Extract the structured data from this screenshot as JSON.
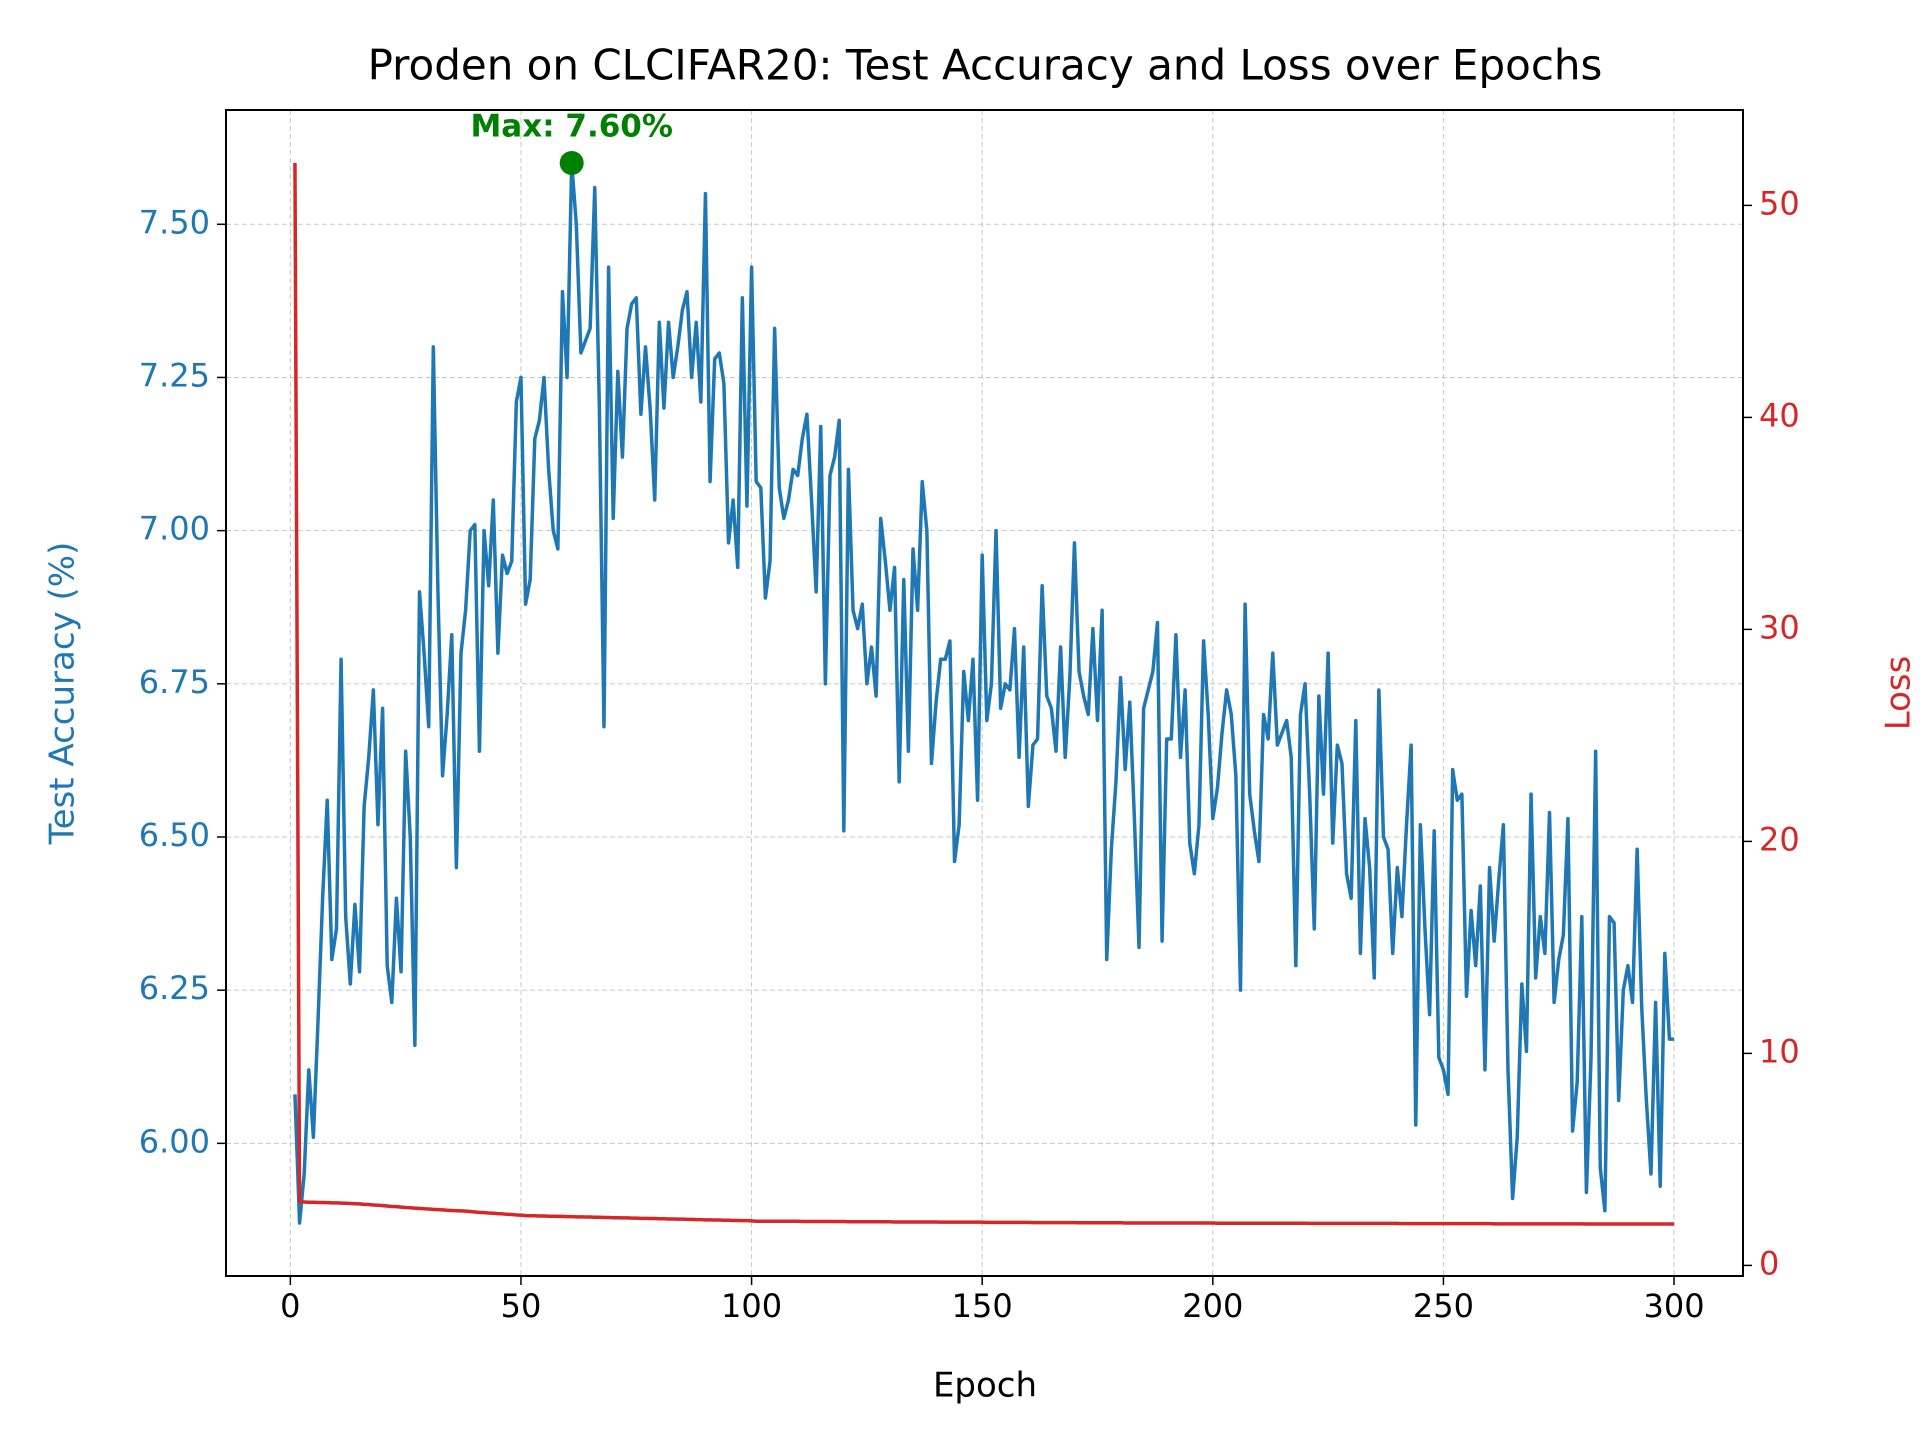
{
  "chart_data": {
    "type": "line",
    "title": "Proden on CLCIFAR20: Test Accuracy and Loss over Epochs",
    "xlabel": "Epoch",
    "ylabel": "Test Accuracy (%)",
    "y2label": "Loss",
    "x": [
      1,
      2,
      3,
      4,
      5,
      6,
      7,
      8,
      9,
      10,
      11,
      12,
      13,
      14,
      15,
      16,
      17,
      18,
      19,
      20,
      21,
      22,
      23,
      24,
      25,
      26,
      27,
      28,
      29,
      30,
      31,
      32,
      33,
      34,
      35,
      36,
      37,
      38,
      39,
      40,
      41,
      42,
      43,
      44,
      45,
      46,
      47,
      48,
      49,
      50,
      51,
      52,
      53,
      54,
      55,
      56,
      57,
      58,
      59,
      60,
      61,
      62,
      63,
      64,
      65,
      66,
      67,
      68,
      69,
      70,
      71,
      72,
      73,
      74,
      75,
      76,
      77,
      78,
      79,
      80,
      81,
      82,
      83,
      84,
      85,
      86,
      87,
      88,
      89,
      90,
      91,
      92,
      93,
      94,
      95,
      96,
      97,
      98,
      99,
      100,
      101,
      102,
      103,
      104,
      105,
      106,
      107,
      108,
      109,
      110,
      111,
      112,
      113,
      114,
      115,
      116,
      117,
      118,
      119,
      120,
      121,
      122,
      123,
      124,
      125,
      126,
      127,
      128,
      129,
      130,
      131,
      132,
      133,
      134,
      135,
      136,
      137,
      138,
      139,
      140,
      141,
      142,
      143,
      144,
      145,
      146,
      147,
      148,
      149,
      150,
      151,
      152,
      153,
      154,
      155,
      156,
      157,
      158,
      159,
      160,
      161,
      162,
      163,
      164,
      165,
      166,
      167,
      168,
      169,
      170,
      171,
      172,
      173,
      174,
      175,
      176,
      177,
      178,
      179,
      180,
      181,
      182,
      183,
      184,
      185,
      186,
      187,
      188,
      189,
      190,
      191,
      192,
      193,
      194,
      195,
      196,
      197,
      198,
      199,
      200,
      201,
      202,
      203,
      204,
      205,
      206,
      207,
      208,
      209,
      210,
      211,
      212,
      213,
      214,
      215,
      216,
      217,
      218,
      219,
      220,
      221,
      222,
      223,
      224,
      225,
      226,
      227,
      228,
      229,
      230,
      231,
      232,
      233,
      234,
      235,
      236,
      237,
      238,
      239,
      240,
      241,
      242,
      243,
      244,
      245,
      246,
      247,
      248,
      249,
      250,
      251,
      252,
      253,
      254,
      255,
      256,
      257,
      258,
      259,
      260,
      261,
      262,
      263,
      264,
      265,
      266,
      267,
      268,
      269,
      270,
      271,
      272,
      273,
      274,
      275,
      276,
      277,
      278,
      279,
      280,
      281,
      282,
      283,
      284,
      285,
      286,
      287,
      288,
      289,
      290,
      291,
      292,
      293,
      294,
      295,
      296,
      297,
      298,
      299,
      300
    ],
    "series": [
      {
        "name": "Test Accuracy",
        "color": "#1f77b4",
        "axis": "y",
        "values": [
          6.08,
          5.87,
          5.95,
          6.12,
          6.01,
          6.2,
          6.4,
          6.56,
          6.3,
          6.35,
          6.79,
          6.37,
          6.26,
          6.39,
          6.28,
          6.55,
          6.63,
          6.74,
          6.52,
          6.71,
          6.29,
          6.23,
          6.4,
          6.28,
          6.64,
          6.5,
          6.16,
          6.9,
          6.8,
          6.68,
          7.3,
          6.9,
          6.6,
          6.7,
          6.83,
          6.45,
          6.8,
          6.87,
          7.0,
          7.01,
          6.64,
          7.0,
          6.91,
          7.05,
          6.8,
          6.96,
          6.93,
          6.95,
          7.21,
          7.25,
          6.88,
          6.92,
          7.15,
          7.18,
          7.25,
          7.1,
          7.0,
          6.97,
          7.39,
          7.25,
          7.6,
          7.5,
          7.29,
          7.31,
          7.33,
          7.56,
          7.2,
          6.68,
          7.43,
          7.02,
          7.26,
          7.12,
          7.33,
          7.37,
          7.38,
          7.19,
          7.3,
          7.2,
          7.05,
          7.34,
          7.2,
          7.34,
          7.25,
          7.3,
          7.36,
          7.39,
          7.25,
          7.34,
          7.21,
          7.55,
          7.08,
          7.28,
          7.29,
          7.24,
          6.98,
          7.05,
          6.94,
          7.38,
          7.04,
          7.43,
          7.08,
          7.07,
          6.89,
          6.95,
          7.33,
          7.07,
          7.02,
          7.05,
          7.1,
          7.09,
          7.15,
          7.19,
          7.05,
          6.9,
          7.17,
          6.75,
          7.09,
          7.12,
          7.18,
          6.51,
          7.1,
          6.87,
          6.84,
          6.88,
          6.75,
          6.81,
          6.73,
          7.02,
          6.95,
          6.87,
          6.94,
          6.59,
          6.92,
          6.64,
          6.97,
          6.87,
          7.08,
          7.0,
          6.62,
          6.72,
          6.79,
          6.79,
          6.82,
          6.46,
          6.52,
          6.77,
          6.69,
          6.79,
          6.56,
          6.96,
          6.69,
          6.75,
          7.0,
          6.71,
          6.75,
          6.74,
          6.84,
          6.63,
          6.81,
          6.55,
          6.65,
          6.66,
          6.91,
          6.73,
          6.71,
          6.64,
          6.81,
          6.63,
          6.76,
          6.98,
          6.77,
          6.73,
          6.7,
          6.84,
          6.69,
          6.87,
          6.3,
          6.48,
          6.59,
          6.76,
          6.61,
          6.72,
          6.53,
          6.32,
          6.71,
          6.74,
          6.77,
          6.85,
          6.33,
          6.66,
          6.66,
          6.83,
          6.63,
          6.74,
          6.49,
          6.44,
          6.52,
          6.82,
          6.7,
          6.53,
          6.58,
          6.67,
          6.74,
          6.7,
          6.6,
          6.25,
          6.88,
          6.57,
          6.51,
          6.46,
          6.7,
          6.66,
          6.8,
          6.65,
          6.67,
          6.69,
          6.63,
          6.29,
          6.7,
          6.75,
          6.57,
          6.35,
          6.73,
          6.57,
          6.8,
          6.49,
          6.65,
          6.62,
          6.44,
          6.4,
          6.69,
          6.31,
          6.53,
          6.45,
          6.27,
          6.74,
          6.5,
          6.48,
          6.31,
          6.45,
          6.37,
          6.52,
          6.65,
          6.03,
          6.52,
          6.35,
          6.21,
          6.51,
          6.14,
          6.12,
          6.08,
          6.61,
          6.56,
          6.57,
          6.24,
          6.38,
          6.29,
          6.42,
          6.12,
          6.45,
          6.33,
          6.43,
          6.52,
          6.12,
          5.91,
          6.01,
          6.26,
          6.15,
          6.57,
          6.27,
          6.37,
          6.31,
          6.54,
          6.23,
          6.3,
          6.34,
          6.53,
          6.02,
          6.1,
          6.37,
          5.92,
          6.14,
          6.64,
          5.96,
          5.89,
          6.37,
          6.36,
          6.07,
          6.25,
          6.29,
          6.23,
          6.48,
          6.22,
          6.07,
          5.95,
          6.23,
          5.93,
          6.31,
          6.17,
          6.17
        ]
      },
      {
        "name": "Loss",
        "color": "#d62728",
        "axis": "y2",
        "values": [
          52,
          3.0,
          2.99,
          2.98,
          2.98,
          2.97,
          2.97,
          2.96,
          2.95,
          2.95,
          2.94,
          2.93,
          2.92,
          2.91,
          2.9,
          2.88,
          2.87,
          2.85,
          2.84,
          2.82,
          2.8,
          2.78,
          2.77,
          2.75,
          2.73,
          2.72,
          2.7,
          2.69,
          2.67,
          2.66,
          2.64,
          2.63,
          2.62,
          2.6,
          2.59,
          2.58,
          2.57,
          2.56,
          2.54,
          2.52,
          2.5,
          2.49,
          2.47,
          2.46,
          2.44,
          2.43,
          2.41,
          2.4,
          2.38,
          2.37,
          2.35,
          2.34,
          2.34,
          2.33,
          2.33,
          2.32,
          2.32,
          2.31,
          2.31,
          2.3,
          2.3,
          2.29,
          2.29,
          2.28,
          2.28,
          2.27,
          2.27,
          2.26,
          2.26,
          2.25,
          2.25,
          2.24,
          2.24,
          2.23,
          2.23,
          2.22,
          2.22,
          2.21,
          2.21,
          2.2,
          2.2,
          2.19,
          2.19,
          2.18,
          2.18,
          2.17,
          2.17,
          2.16,
          2.16,
          2.15,
          2.15,
          2.14,
          2.14,
          2.13,
          2.13,
          2.12,
          2.12,
          2.11,
          2.11,
          2.1,
          2.08,
          2.08,
          2.08,
          2.08,
          2.08,
          2.08,
          2.08,
          2.08,
          2.08,
          2.08,
          2.07,
          2.07,
          2.07,
          2.07,
          2.07,
          2.07,
          2.07,
          2.07,
          2.07,
          2.07,
          2.06,
          2.06,
          2.06,
          2.06,
          2.06,
          2.06,
          2.06,
          2.06,
          2.06,
          2.06,
          2.05,
          2.05,
          2.05,
          2.05,
          2.05,
          2.05,
          2.05,
          2.05,
          2.05,
          2.05,
          2.04,
          2.04,
          2.04,
          2.04,
          2.04,
          2.04,
          2.04,
          2.04,
          2.04,
          2.04,
          2.03,
          2.03,
          2.03,
          2.03,
          2.03,
          2.03,
          2.03,
          2.03,
          2.03,
          2.03,
          2.02,
          2.02,
          2.02,
          2.02,
          2.02,
          2.02,
          2.02,
          2.02,
          2.02,
          2.02,
          2.01,
          2.01,
          2.01,
          2.01,
          2.01,
          2.01,
          2.01,
          2.01,
          2.01,
          2.01,
          2.0,
          2.0,
          2.0,
          2.0,
          2.0,
          2.0,
          2.0,
          2.0,
          2.0,
          2.0,
          2.0,
          2.0,
          2.0,
          2.0,
          2.0,
          2.0,
          2.0,
          2.0,
          2.0,
          2.0,
          1.99,
          1.99,
          1.99,
          1.99,
          1.99,
          1.99,
          1.99,
          1.99,
          1.99,
          1.99,
          1.99,
          1.99,
          1.99,
          1.99,
          1.99,
          1.99,
          1.99,
          1.99,
          1.99,
          1.99,
          1.98,
          1.98,
          1.98,
          1.98,
          1.98,
          1.98,
          1.98,
          1.98,
          1.98,
          1.98,
          1.98,
          1.98,
          1.98,
          1.98,
          1.98,
          1.98,
          1.98,
          1.98,
          1.98,
          1.98,
          1.97,
          1.97,
          1.97,
          1.97,
          1.97,
          1.97,
          1.97,
          1.97,
          1.97,
          1.97,
          1.97,
          1.97,
          1.97,
          1.97,
          1.97,
          1.97,
          1.97,
          1.97,
          1.97,
          1.97,
          1.96,
          1.96,
          1.96,
          1.96,
          1.96,
          1.96,
          1.96,
          1.96,
          1.96,
          1.96,
          1.96,
          1.96,
          1.96,
          1.96,
          1.96,
          1.96,
          1.96,
          1.96,
          1.96,
          1.96,
          1.95,
          1.95,
          1.95,
          1.95,
          1.95,
          1.95,
          1.95,
          1.95,
          1.95,
          1.95,
          1.95,
          1.95,
          1.95,
          1.95,
          1.95,
          1.95,
          1.95,
          1.95,
          1.95,
          1.95
        ]
      }
    ],
    "annotations": [
      {
        "text": "Max: 7.60%",
        "x": 61,
        "y": 7.6,
        "color": "#008000"
      }
    ],
    "xlim": [
      -13.95,
      314.95
    ],
    "xticks": [
      0,
      50,
      100,
      150,
      200,
      250,
      300
    ],
    "ylim": [
      5.7835,
      7.6865
    ],
    "yticks": [
      {
        "value": 6,
        "label": "6.00"
      },
      {
        "value": 6.25,
        "label": "6.25"
      },
      {
        "value": 6.5,
        "label": "6.50"
      },
      {
        "value": 6.75,
        "label": "6.75"
      },
      {
        "value": 7,
        "label": "7.00"
      },
      {
        "value": 7.25,
        "label": "7.25"
      },
      {
        "value": 7.5,
        "label": "7.50"
      }
    ],
    "y2lim": [
      -0.5,
      54.5
    ],
    "y2ticks": [
      0,
      10,
      20,
      30,
      40,
      50
    ],
    "grid": true
  }
}
